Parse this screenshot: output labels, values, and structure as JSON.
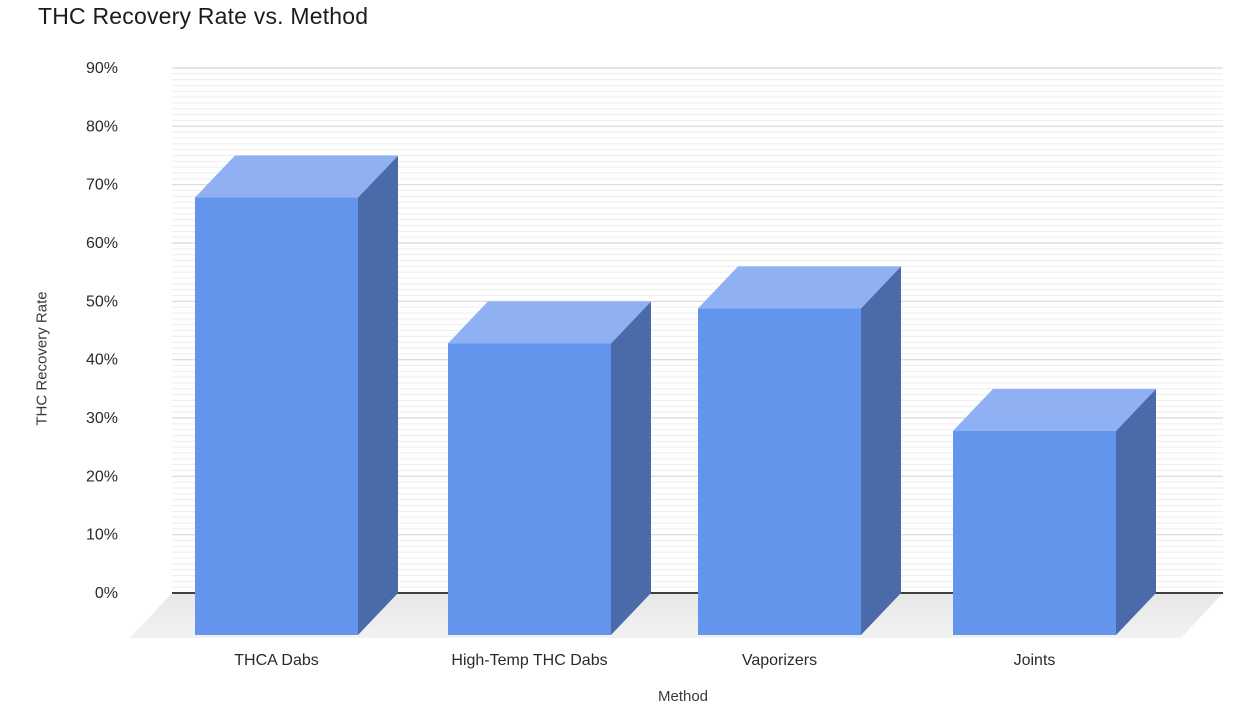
{
  "chart_data": {
    "type": "bar",
    "variant": "3d-column",
    "title": "THC Recovery Rate vs. Method",
    "xlabel": "Method",
    "ylabel": "THC Recovery Rate",
    "categories": [
      "THCA Dabs",
      "High-Temp THC Dabs",
      "Vaporizers",
      "Joints"
    ],
    "values": [
      75,
      50,
      56,
      35
    ],
    "unit": "%",
    "ylim": [
      0,
      90
    ],
    "ytick_step": 10,
    "ytick_labels": [
      "0%",
      "10%",
      "20%",
      "30%",
      "40%",
      "50%",
      "60%",
      "70%",
      "80%",
      "90%"
    ],
    "legend": "none",
    "grid": {
      "major": true,
      "minor": true,
      "minor_step_percent": 1
    },
    "colors": {
      "bar_front": "#6495ec",
      "bar_top": "#8fb1f3",
      "bar_side": "#4b6aa9",
      "major_grid": "#d7d7d7",
      "minor_grid": "#eeeeee",
      "baseline": "#3f3f3f",
      "floor_dark": "#e7e7e7",
      "floor_light": "#f2f2f2",
      "tick_text": "#2a2a2a",
      "axis_title_text": "#3a3a3a",
      "title_text": "#1c1c1c"
    }
  }
}
